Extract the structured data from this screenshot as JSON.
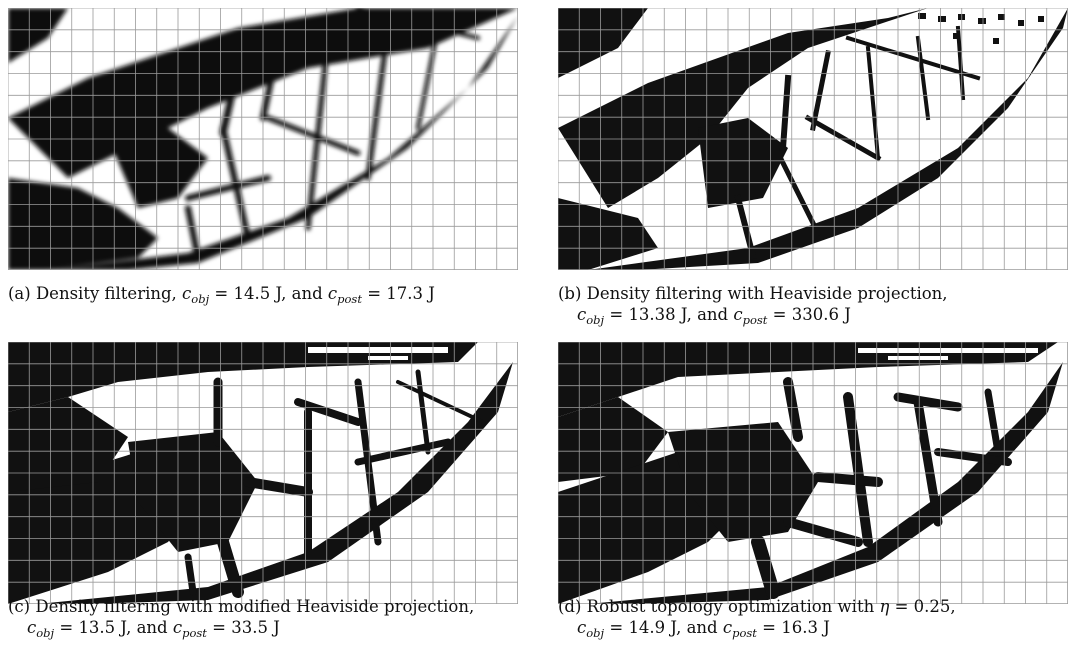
{
  "panels": [
    {
      "id": "a",
      "caption_line1": "(a) Density filtering, ",
      "c_obj": "14.5 J",
      "c_post": "17.3 J",
      "sep_obj_post": ", and ",
      "caption_line2": ""
    },
    {
      "id": "b",
      "caption_line1": "(b) Density filtering with Heaviside projection,",
      "c_obj": "13.38 J",
      "c_post": "330.6 J",
      "sep_obj_post": ", and "
    },
    {
      "id": "c",
      "caption_line1": "(c) Density filtering with modified Heaviside projection,",
      "c_obj": "13.5 J",
      "c_post": "33.5 J",
      "sep_obj_post": ", and "
    },
    {
      "id": "d",
      "caption_line1": "(d) Robust topology optimization with ",
      "eta": "0.25",
      "c_obj": "14.9 J",
      "c_post": "16.3 J",
      "sep_obj_post": ", and "
    }
  ],
  "symbols": {
    "c": "c",
    "obj": "obj",
    "post": "post",
    "eta": "η",
    "equals": " = ",
    "comma": ","
  },
  "colors": {
    "material": "#111111",
    "grid": "#9a9a9a",
    "void": "#ffffff"
  }
}
